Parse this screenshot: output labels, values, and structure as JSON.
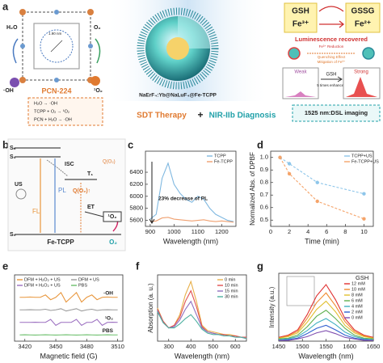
{
  "panel_labels": [
    "a",
    "b",
    "c",
    "d",
    "e",
    "f",
    "g"
  ],
  "panel_a": {
    "mof": {
      "water": "H₂O",
      "oxygen": "O₂",
      "hydroxyl": "·OH",
      "singlet": "¹O₂",
      "size": "1.90 nm",
      "name": "PCN-224",
      "reactions": [
        "H₂O → ·OH",
        "TCPP + O₂ → ¹O₂",
        "PCN + H₂O → ·OH"
      ]
    },
    "nanoparticle": "NaErF₄:Yb@NaLuF₄@Fe-TCPP",
    "therapy": "SDT Therapy",
    "plus": "+",
    "diagnosis": "NIR-IIb Diagnosis",
    "gsh": "GSH",
    "fe3": "Fe³⁺",
    "gssg": "GSSG",
    "fe2": "Fe²⁺",
    "recovered": "Luminescence recovered",
    "mechanism": [
      "Fe³⁺ Reduction",
      "Quenching Effect",
      "Mitigation of Fe³⁺"
    ],
    "weak": "Weak",
    "strong": "Strong",
    "arrow_gsh": "GSH",
    "enhanced": "5 times enhanced",
    "imaging": "1525 nm:DSL imaging"
  },
  "panel_b": {
    "sn": "Sₙ",
    "s1": "S₁",
    "isc": "ISC",
    "t1": "T₁",
    "q_o2": "Q(O₂)",
    "us": "US",
    "fl": "FL",
    "pl": "PL",
    "q_o2_up": "Q(O₂)↑",
    "et": "ET",
    "singlet": "¹O₂",
    "s0": "S₀",
    "name": "Fe-TCPP",
    "oxygen": "O₂"
  },
  "chart_data": [
    {
      "type": "line",
      "x_label": "Wavelength (nm)",
      "x": [
        900,
        925,
        950,
        975,
        1000,
        1025,
        1050,
        1075,
        1100,
        1125,
        1150,
        1175,
        1200,
        1225,
        1250
      ],
      "xlim": [
        880,
        1260
      ],
      "xticks": [
        900,
        1000,
        1100,
        1200
      ],
      "ylim": [
        5500,
        6750
      ],
      "yticks": [
        5600,
        5800,
        6000,
        6200,
        6400
      ],
      "legend": "upper right",
      "series": [
        {
          "name": "TCPP",
          "color": "#7fb8e0",
          "values": [
            5620,
            5700,
            6300,
            6550,
            6200,
            6050,
            5950,
            5900,
            6000,
            5950,
            5800,
            5700,
            5650,
            5600,
            5580
          ]
        },
        {
          "name": "Fe-TCPP",
          "color": "#f0a070",
          "values": [
            5580,
            5590,
            5640,
            5650,
            5620,
            5610,
            5600,
            5590,
            5600,
            5610,
            5590,
            5580,
            5590,
            5580,
            5570
          ]
        }
      ],
      "annotations": [
        "23% decrease of PL"
      ]
    },
    {
      "type": "line",
      "markers": true,
      "linestyle": "dashed",
      "x_label": "Time (min)",
      "y_label": "Normalized Abs. of DPBF",
      "x": [
        1,
        2,
        5,
        10
      ],
      "xlim": [
        0,
        11
      ],
      "xticks": [
        0,
        2,
        4,
        6,
        8,
        10
      ],
      "ylim": [
        0.45,
        1.05
      ],
      "yticks": [
        0.5,
        0.6,
        0.7,
        0.8,
        0.9,
        {
          "value": 1,
          "label": "1.0"
        }
      ],
      "legend": "upper right",
      "series": [
        {
          "name": "TCPP+US",
          "color": "#8ec6ea",
          "values": [
            1.0,
            0.95,
            0.8,
            0.71
          ]
        },
        {
          "name": "Fe-TCPP+US",
          "color": "#f5a46a",
          "values": [
            1.0,
            0.87,
            0.65,
            0.51
          ]
        }
      ]
    },
    {
      "type": "line",
      "stacked_traces": true,
      "x_label": "Magnetic field (G)",
      "x": [
        3415,
        3420,
        3425,
        3430,
        3435,
        3440,
        3445,
        3450,
        3455,
        3460,
        3465,
        3470,
        3475,
        3480,
        3485,
        3490,
        3495,
        3500,
        3505,
        3510
      ],
      "xlim": [
        3410,
        3515
      ],
      "xticks": [
        3420,
        3450,
        3480,
        3510
      ],
      "ylim": [
        -1,
        1
      ],
      "legend": "upper left",
      "series": [
        {
          "name": "DFM + H₂O₂ + US",
          "color": "#e8963c",
          "values": [
            0,
            0,
            0.05,
            0,
            0,
            0.4,
            -0.4,
            0,
            0.8,
            -0.8,
            0,
            0.8,
            -0.8,
            0,
            0.4,
            -0.4,
            0,
            0.05,
            0,
            0
          ]
        },
        {
          "name": "DFM + US",
          "color": "#999999",
          "values": [
            0,
            0,
            0.02,
            0,
            0,
            0.1,
            -0.1,
            0,
            0.2,
            -0.2,
            0,
            0.2,
            -0.2,
            0,
            0.1,
            -0.1,
            0,
            0.02,
            0,
            0
          ]
        },
        {
          "name": "DFM + H₂O₂ + US",
          "color": "#9b6fc0",
          "values": [
            0,
            0,
            0,
            0.03,
            0,
            0,
            0.5,
            -0.5,
            0,
            0,
            0,
            0.5,
            -0.5,
            0,
            0,
            0.5,
            -0.5,
            0,
            0.03,
            0
          ]
        },
        {
          "name": "PBS",
          "color": "#6cbf6c",
          "values": [
            0,
            0.02,
            0,
            -0.02,
            0,
            0.02,
            0,
            -0.02,
            0,
            0.02,
            0,
            -0.02,
            0,
            0.02,
            0,
            -0.02,
            0,
            0.02,
            0,
            0
          ]
        }
      ],
      "annotations": [
        "·OH",
        "¹O₂",
        "PBS"
      ]
    },
    {
      "type": "line",
      "x_label": "Wavelength (nm)",
      "y_label": "Absorption (a. u.)",
      "x": [
        250,
        275,
        300,
        325,
        350,
        375,
        400,
        425,
        450,
        475,
        500,
        525,
        550,
        575,
        600,
        625,
        650
      ],
      "xlim": [
        250,
        650
      ],
      "xticks": [
        300,
        400,
        500,
        600
      ],
      "ylim": [
        0,
        0.5
      ],
      "legend": "upper right",
      "series": [
        {
          "name": "0 min",
          "color": "#e8b04a",
          "values": [
            0.25,
            0.15,
            0.1,
            0.12,
            0.2,
            0.35,
            0.45,
            0.3,
            0.12,
            0.08,
            0.07,
            0.06,
            0.05,
            0.05,
            0.04,
            0.03,
            0.03
          ]
        },
        {
          "name": "10 min",
          "color": "#e05050",
          "values": [
            0.24,
            0.15,
            0.1,
            0.12,
            0.18,
            0.3,
            0.38,
            0.26,
            0.11,
            0.07,
            0.06,
            0.05,
            0.05,
            0.04,
            0.04,
            0.03,
            0.03
          ]
        },
        {
          "name": "15 min",
          "color": "#9070c0",
          "values": [
            0.23,
            0.14,
            0.1,
            0.11,
            0.16,
            0.24,
            0.3,
            0.2,
            0.1,
            0.07,
            0.06,
            0.05,
            0.04,
            0.04,
            0.03,
            0.03,
            0.02
          ]
        },
        {
          "name": "30 min",
          "color": "#4db0a0",
          "values": [
            0.22,
            0.14,
            0.1,
            0.1,
            0.13,
            0.17,
            0.2,
            0.15,
            0.09,
            0.06,
            0.05,
            0.05,
            0.04,
            0.04,
            0.03,
            0.03,
            0.02
          ]
        }
      ]
    },
    {
      "type": "line",
      "x_label": "Wavelength (nm)",
      "y_label": "Intensity (a.u.)",
      "x": [
        1450,
        1470,
        1490,
        1510,
        1530,
        1550,
        1570,
        1590,
        1610,
        1630,
        1650
      ],
      "xlim": [
        1450,
        1650
      ],
      "xticks": [
        1450,
        1500,
        1550,
        1600,
        1650
      ],
      "ylim": [
        0,
        0.9
      ],
      "legend": "upper right",
      "legend_title": "GSH",
      "series": [
        {
          "name": "12 mM",
          "color": "#e03030",
          "values": [
            0.05,
            0.08,
            0.15,
            0.35,
            0.6,
            0.75,
            0.55,
            0.3,
            0.15,
            0.08,
            0.05
          ]
        },
        {
          "name": "10 mM",
          "color": "#f08a30",
          "values": [
            0.04,
            0.07,
            0.13,
            0.3,
            0.51,
            0.64,
            0.47,
            0.26,
            0.13,
            0.07,
            0.04
          ]
        },
        {
          "name": "8 mM",
          "color": "#e0c030",
          "values": [
            0.04,
            0.06,
            0.11,
            0.25,
            0.42,
            0.53,
            0.39,
            0.21,
            0.11,
            0.06,
            0.04
          ]
        },
        {
          "name": "6 mM",
          "color": "#60b050",
          "values": [
            0.03,
            0.04,
            0.08,
            0.19,
            0.33,
            0.41,
            0.3,
            0.17,
            0.08,
            0.04,
            0.03
          ]
        },
        {
          "name": "4 mM",
          "color": "#40b0c0",
          "values": [
            0.02,
            0.03,
            0.06,
            0.14,
            0.24,
            0.3,
            0.22,
            0.12,
            0.06,
            0.03,
            0.02
          ]
        },
        {
          "name": "2 mM",
          "color": "#3060d0",
          "values": [
            0.01,
            0.02,
            0.04,
            0.1,
            0.17,
            0.21,
            0.15,
            0.08,
            0.04,
            0.02,
            0.01
          ]
        },
        {
          "name": "0 mM",
          "color": "#8050b0",
          "values": [
            0.01,
            0.01,
            0.03,
            0.06,
            0.11,
            0.14,
            0.1,
            0.05,
            0.03,
            0.01,
            0.01
          ]
        }
      ]
    }
  ]
}
